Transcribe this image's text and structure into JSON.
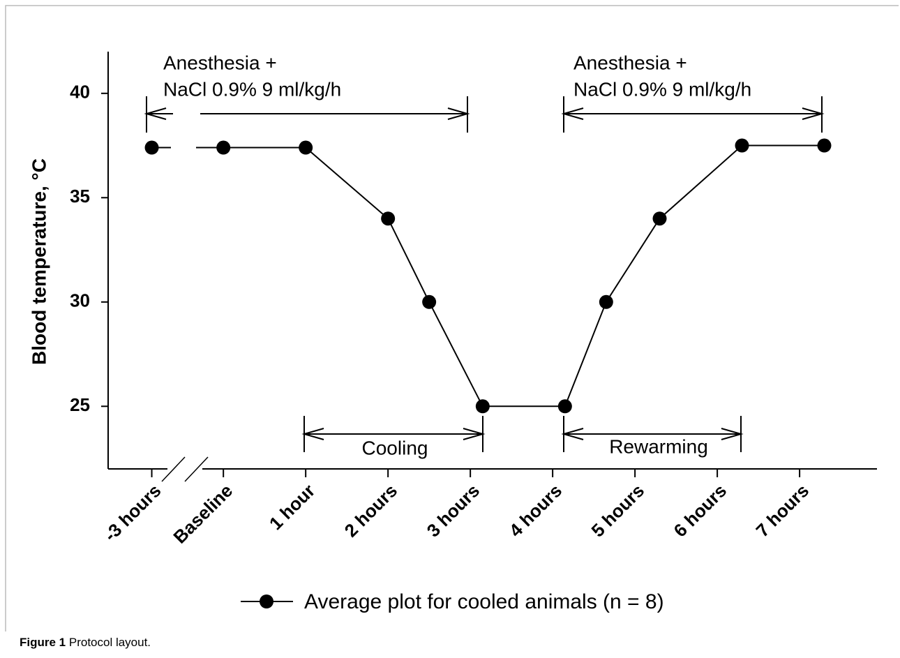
{
  "chart_data": {
    "type": "line",
    "ylabel": "Blood temperature, °C",
    "x": [
      -0.87,
      0,
      1,
      2,
      2.5,
      3.15,
      4.15,
      4.65,
      5.3,
      6.3,
      7.3
    ],
    "series": [
      {
        "name": "Average plot for cooled animals (n = 8)",
        "color": "#000000",
        "values": [
          37.4,
          37.4,
          37.4,
          34,
          30,
          25,
          25,
          30,
          34,
          37.5,
          37.5
        ]
      }
    ],
    "xlim": [
      -1.4,
      7.94
    ],
    "xticks": [
      {
        "value": -0.87,
        "label": "-3 hours"
      },
      {
        "value": 0,
        "label": "Baseline"
      },
      {
        "value": 1,
        "label": "1 hour"
      },
      {
        "value": 2,
        "label": "2 hours"
      },
      {
        "value": 3,
        "label": "3 hours"
      },
      {
        "value": 4,
        "label": "4 hours"
      },
      {
        "value": 5,
        "label": "5 hours"
      },
      {
        "value": 6,
        "label": "6 hours"
      },
      {
        "value": 7,
        "label": "7 hours"
      }
    ],
    "ylim": [
      22,
      42
    ],
    "yticks": [
      25,
      30,
      35,
      40
    ],
    "annotations": [
      "Anesthesia +",
      "NaCl 0.9% 9 ml/kg/h",
      "Anesthesia +",
      "NaCl 0.9% 9 ml/kg/h",
      "Cooling",
      "Rewarming"
    ]
  },
  "caption": {
    "label": "Figure 1",
    "text": "Protocol layout."
  }
}
